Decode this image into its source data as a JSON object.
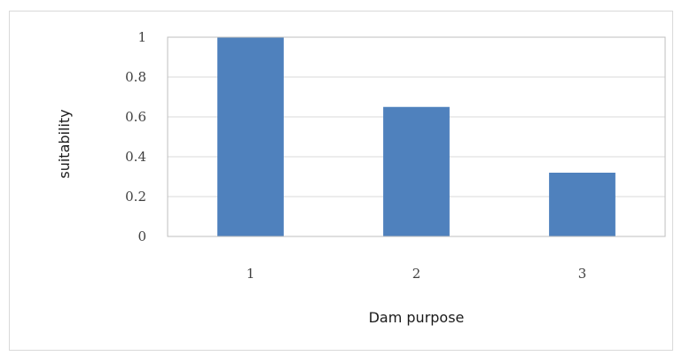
{
  "chart_data": {
    "type": "bar",
    "categories": [
      "1",
      "2",
      "3"
    ],
    "values": [
      1.0,
      0.65,
      0.32
    ],
    "title": "",
    "xlabel": "Dam purpose",
    "ylabel": "suitability",
    "ylim": [
      0,
      1
    ],
    "yticks": [
      "0",
      "0.2",
      "0.4",
      "0.6",
      "0.8",
      "1"
    ],
    "ytick_values": [
      0,
      0.2,
      0.4,
      0.6,
      0.8,
      1
    ],
    "grid": true,
    "legend": "none",
    "bar_color": "#4f81bd"
  }
}
